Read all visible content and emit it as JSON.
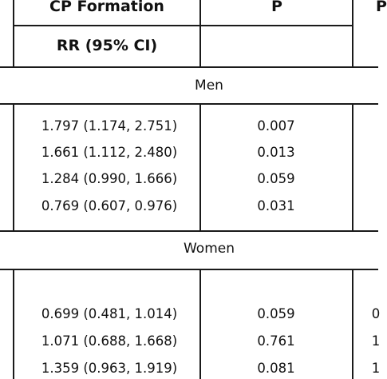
{
  "header": {
    "col1_title": "CP Formation",
    "col1_sub": "RR (95% CI)",
    "col2_title": "P",
    "col3_title_partial": "P"
  },
  "sections": [
    {
      "label": "Men",
      "rows": [
        {
          "rr": "1.797 (1.174, 2.751)",
          "p": "0.007"
        },
        {
          "rr": "1.661 (1.112, 2.480)",
          "p": "0.013"
        },
        {
          "rr": "1.284 (0.990, 1.666)",
          "p": "0.059"
        },
        {
          "rr": "0.769 (0.607, 0.976)",
          "p": "0.031"
        }
      ]
    },
    {
      "label": "Women",
      "rows": [
        {
          "rr": "0.699 (0.481, 1.014)",
          "p": "0.059",
          "edge": "0"
        },
        {
          "rr": "1.071 (0.688, 1.668)",
          "p": "0.761",
          "edge": "1"
        },
        {
          "rr": "1.359 (0.963, 1.919)",
          "p": "0.081",
          "edge": "1"
        }
      ]
    }
  ]
}
